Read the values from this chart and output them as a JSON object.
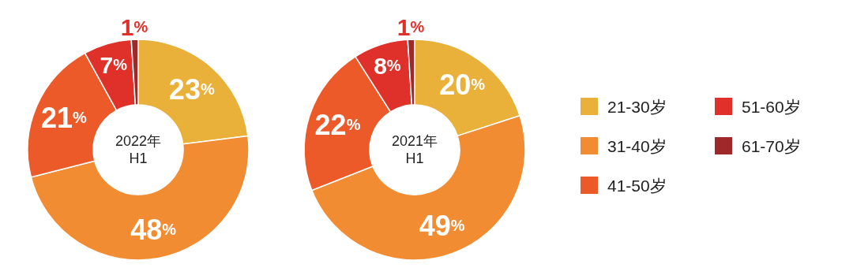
{
  "chart_data": [
    {
      "type": "donut",
      "categories": [
        null,
        null,
        null,
        null,
        null
      ],
      "values": [
        23,
        48,
        21,
        7,
        1
      ],
      "colors": [
        "#e9b03a",
        "#f28c32",
        "#ec5a2a",
        "#e0302a",
        "#a0282a"
      ],
      "value_labels": [
        "23%",
        "48%",
        "21%",
        "7%",
        "1%"
      ],
      "annotations": [
        "2022年",
        "H1"
      ],
      "legend": false
    },
    {
      "type": "donut",
      "categories": [
        "21-30岁",
        "31-40岁",
        "41-50岁",
        "51-60岁",
        "61-70岁"
      ],
      "values": [
        20,
        49,
        22,
        8,
        1
      ],
      "colors": [
        "#e9b03a",
        "#f28c32",
        "#ec5a2a",
        "#e0302a",
        "#a0282a"
      ],
      "value_labels": [
        "20%",
        "49%",
        "22%",
        "8%",
        "1%"
      ],
      "annotations": [
        "2021年",
        "H1"
      ],
      "legend": "right"
    }
  ]
}
